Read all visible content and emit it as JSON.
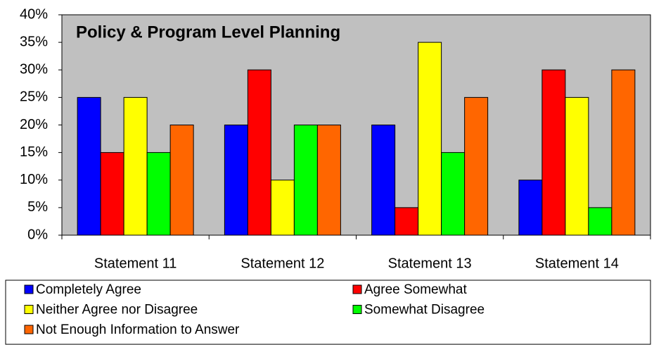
{
  "chart_data": {
    "type": "bar",
    "title": "Policy & Program Level Planning",
    "categories": [
      "Statement 11",
      "Statement 12",
      "Statement 13",
      "Statement 14"
    ],
    "series": [
      {
        "name": "Completely Agree",
        "color": "#0000ff",
        "values": [
          25,
          20,
          20,
          10
        ]
      },
      {
        "name": "Agree Somewhat",
        "color": "#ff0000",
        "values": [
          15,
          30,
          5,
          30
        ]
      },
      {
        "name": "Neither Agree nor Disagree",
        "color": "#ffff00",
        "values": [
          25,
          10,
          35,
          25
        ]
      },
      {
        "name": "Somewhat Disagree",
        "color": "#00ff00",
        "values": [
          15,
          20,
          15,
          5
        ]
      },
      {
        "name": "Not Enough Information to Answer",
        "color": "#ff6600",
        "values": [
          20,
          20,
          25,
          30
        ]
      }
    ],
    "ylim": [
      0,
      40
    ],
    "yticks": [
      {
        "value": 0,
        "label": "0%"
      },
      {
        "value": 5,
        "label": "5%"
      },
      {
        "value": 10,
        "label": "10%"
      },
      {
        "value": 15,
        "label": "15%"
      },
      {
        "value": 20,
        "label": "20%"
      },
      {
        "value": 25,
        "label": "25%"
      },
      {
        "value": 30,
        "label": "30%"
      },
      {
        "value": 35,
        "label": "35%"
      },
      {
        "value": 40,
        "label": "40%"
      }
    ],
    "plot_background": "#c0c0c0",
    "grid": false,
    "legend": "bottom"
  }
}
